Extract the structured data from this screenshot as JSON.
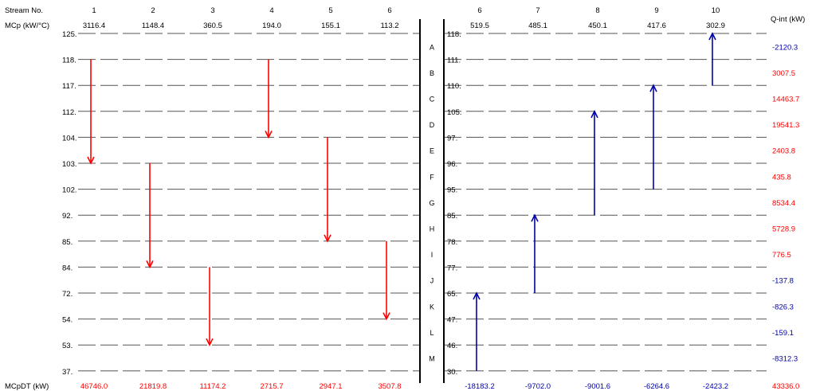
{
  "header": {
    "stream_label": "Stream No.",
    "mcp_label": "MCp (kW/°C)",
    "qint_label": "Q-int (kW)",
    "mcpdt_label": "MCpDT (kW)"
  },
  "colors": {
    "hot": "#ff0000",
    "cold": "#0000aa",
    "line": "#000000",
    "text": "#000000"
  },
  "intervals": [
    "A",
    "B",
    "C",
    "D",
    "E",
    "F",
    "G",
    "H",
    "I",
    "J",
    "K",
    "L",
    "M"
  ],
  "hot_temps": [
    "125.",
    "118.",
    "117.",
    "112.",
    "104.",
    "103.",
    "102.",
    "92.",
    "85.",
    "84.",
    "72.",
    "54.",
    "53.",
    "37."
  ],
  "cold_temps": [
    "118.",
    "111.",
    "110.",
    "105.",
    "97.",
    "96.",
    "95.",
    "85.",
    "78.",
    "77.",
    "65.",
    "47.",
    "46.",
    "30."
  ],
  "hot_streams": [
    {
      "no": "1",
      "mcp": "3116.4",
      "start": 1,
      "end": 5,
      "mcpdt": "46746.0"
    },
    {
      "no": "2",
      "mcp": "1148.4",
      "start": 5,
      "end": 9,
      "mcpdt": "21819.8"
    },
    {
      "no": "3",
      "mcp": "360.5",
      "start": 9,
      "end": 12,
      "mcpdt": "11174.2"
    },
    {
      "no": "4",
      "mcp": "194.0",
      "start": 1,
      "end": 4,
      "mcpdt": "2715.7"
    },
    {
      "no": "5",
      "mcp": "155.1",
      "start": 4,
      "end": 8,
      "mcpdt": "2947.1"
    },
    {
      "no": "6",
      "mcp": "113.2",
      "start": 8,
      "end": 11,
      "mcpdt": "3507.8"
    }
  ],
  "cold_streams": [
    {
      "no": "6",
      "mcp": "519.5",
      "start": 13,
      "end": 10,
      "mcpdt": "-18183.2"
    },
    {
      "no": "7",
      "mcp": "485.1",
      "start": 10,
      "end": 7,
      "mcpdt": "-9702.0"
    },
    {
      "no": "8",
      "mcp": "450.1",
      "start": 7,
      "end": 3,
      "mcpdt": "-9001.6"
    },
    {
      "no": "9",
      "mcp": "417.6",
      "start": 6,
      "end": 2,
      "mcpdt": "-6264.6"
    },
    {
      "no": "10",
      "mcp": "302.9",
      "start": 2,
      "end": 0,
      "mcpdt": "-2423.2"
    }
  ],
  "q_int": [
    {
      "value": "-2120.3",
      "sign": "neg"
    },
    {
      "value": "3007.5",
      "sign": "pos"
    },
    {
      "value": "14463.7",
      "sign": "pos"
    },
    {
      "value": "19541.3",
      "sign": "pos"
    },
    {
      "value": "2403.8",
      "sign": "pos"
    },
    {
      "value": "435.8",
      "sign": "pos"
    },
    {
      "value": "8534.4",
      "sign": "pos"
    },
    {
      "value": "5728.9",
      "sign": "pos"
    },
    {
      "value": "776.5",
      "sign": "pos"
    },
    {
      "value": "-137.8",
      "sign": "neg"
    },
    {
      "value": "-826.3",
      "sign": "neg"
    },
    {
      "value": "-159.1",
      "sign": "neg"
    },
    {
      "value": "-8312.3",
      "sign": "neg"
    }
  ],
  "q_total": "43336.0"
}
